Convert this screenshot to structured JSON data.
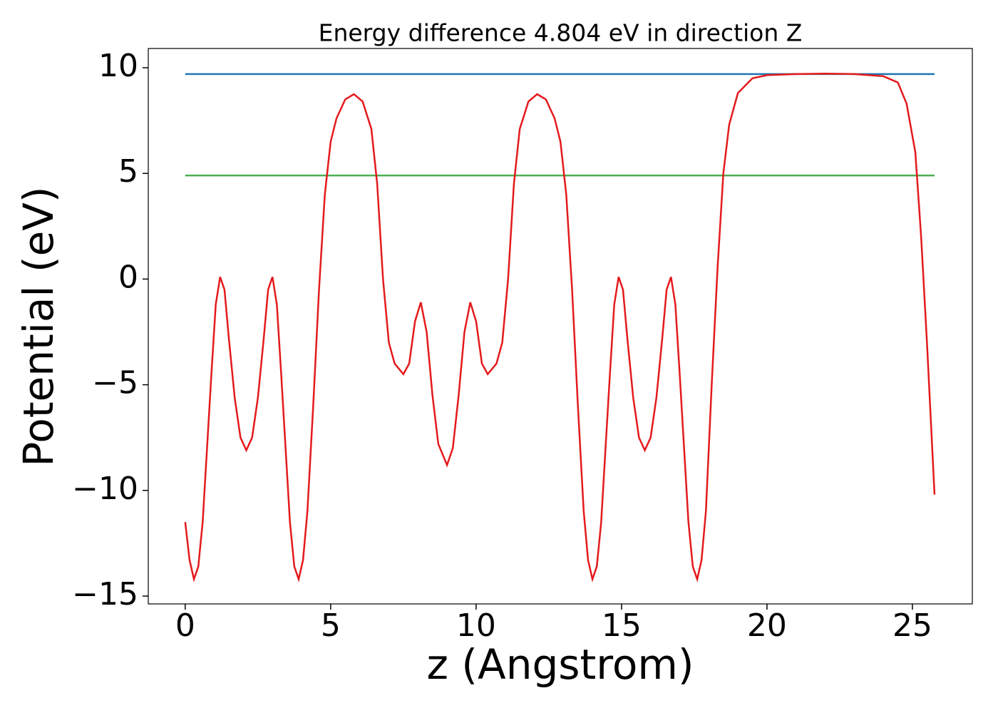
{
  "chart_data": {
    "type": "line",
    "title": "Energy difference 4.804 eV in direction Z",
    "xlabel": "z (Angstrom)",
    "ylabel": "Potential (eV)",
    "xlim": [
      -1.27,
      27.06
    ],
    "ylim": [
      -15.37,
      10.91
    ],
    "xticks": [
      0,
      5,
      10,
      15,
      20,
      25
    ],
    "yticks": [
      {
        "value": -15,
        "label": "−15"
      },
      {
        "value": -10,
        "label": "−10"
      },
      {
        "value": -5,
        "label": "−5"
      },
      0,
      5,
      10
    ],
    "series": [
      {
        "color": "#1f77b4",
        "x": [
          0,
          25.76
        ],
        "values": [
          9.7,
          9.7
        ]
      },
      {
        "color": "#4caf50",
        "x": [
          0,
          25.76
        ],
        "values": [
          4.9,
          4.9
        ]
      },
      {
        "color": "#e41a1c",
        "x": [
          0,
          0.15,
          0.3,
          0.45,
          0.6,
          0.75,
          0.9,
          1.05,
          1.2,
          1.35,
          1.5,
          1.7,
          1.9,
          2.1,
          2.3,
          2.5,
          2.7,
          2.85,
          3.0,
          3.15,
          3.3,
          3.45,
          3.6,
          3.75,
          3.9,
          4.05,
          4.2,
          4.4,
          4.6,
          4.8,
          5.0,
          5.2,
          5.5,
          5.8,
          6.1,
          6.4,
          6.6,
          6.8,
          7.0,
          7.2,
          7.5,
          7.7,
          7.9,
          8.1,
          8.3,
          8.5,
          8.7,
          9.0,
          9.2,
          9.4,
          9.6,
          9.8,
          10.0,
          10.2,
          10.4,
          10.7,
          10.9,
          11.1,
          11.3,
          11.5,
          11.8,
          12.1,
          12.4,
          12.7,
          12.9,
          13.1,
          13.3,
          13.5,
          13.7,
          13.85,
          14.0,
          14.15,
          14.3,
          14.45,
          14.6,
          14.75,
          14.9,
          15.05,
          15.2,
          15.4,
          15.6,
          15.8,
          16.0,
          16.2,
          16.4,
          16.55,
          16.7,
          16.85,
          17.0,
          17.15,
          17.3,
          17.45,
          17.6,
          17.75,
          17.9,
          18.1,
          18.3,
          18.5,
          18.7,
          19.0,
          19.5,
          20,
          21,
          22,
          23,
          24,
          24.5,
          24.8,
          25.1,
          25.3,
          25.5,
          25.76
        ],
        "values": [
          -11.5,
          -13.3,
          -14.2,
          -13.6,
          -11.5,
          -8,
          -4.5,
          -1.2,
          0.1,
          -0.5,
          -2.8,
          -5.6,
          -7.5,
          -8.1,
          -7.5,
          -5.6,
          -2.8,
          -0.5,
          0.1,
          -1.2,
          -4.5,
          -8,
          -11.5,
          -13.6,
          -14.2,
          -13.3,
          -11,
          -6,
          -0.5,
          4,
          6.5,
          7.6,
          8.5,
          8.75,
          8.4,
          7.1,
          4.5,
          0,
          -3,
          -4,
          -4.5,
          -4,
          -2,
          -1.1,
          -2.5,
          -5.5,
          -7.8,
          -8.8,
          -8,
          -5.5,
          -2.5,
          -1.1,
          -2,
          -4,
          -4.5,
          -4,
          -3,
          0,
          4.5,
          7.1,
          8.4,
          8.75,
          8.5,
          7.6,
          6.5,
          4,
          -0.5,
          -6,
          -11,
          -13.3,
          -14.2,
          -13.6,
          -11.5,
          -8,
          -4.5,
          -1.2,
          0.1,
          -0.5,
          -2.8,
          -5.6,
          -7.5,
          -8.1,
          -7.5,
          -5.6,
          -2.8,
          -0.5,
          0.1,
          -1.2,
          -4.5,
          -8,
          -11.5,
          -13.6,
          -14.2,
          -13.3,
          -11,
          -5,
          0.5,
          5,
          7.3,
          8.8,
          9.5,
          9.65,
          9.7,
          9.72,
          9.7,
          9.6,
          9.3,
          8.3,
          6,
          2,
          -3,
          -10.2
        ]
      }
    ]
  }
}
